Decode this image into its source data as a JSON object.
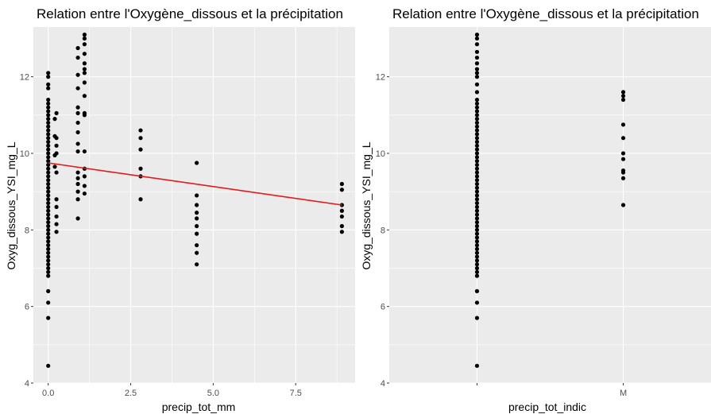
{
  "colors": {
    "panel_bg": "#EBEBEB",
    "grid": "#FFFFFF",
    "point": "#000000",
    "fit_line": "#E41A1C",
    "tick": "#4D4D4D"
  },
  "chart_data": [
    {
      "type": "scatter",
      "title": "Relation entre l'Oxygène_dissous et la précipitation",
      "xlabel": "precip_tot_mm",
      "ylabel": "Oxyg_dissous_YSI_mg_L",
      "xlim": [
        -0.45,
        9.3
      ],
      "ylim": [
        4,
        13.3
      ],
      "xticks": [
        0,
        2.5,
        5,
        7.5
      ],
      "xtick_labels": [
        "0.0",
        "2.5",
        "5.0",
        "7.5"
      ],
      "yticks": [
        4,
        6,
        8,
        10,
        12
      ],
      "ytick_labels": [
        "4",
        "6",
        "8",
        "10",
        "12"
      ],
      "grid": true,
      "trendline": {
        "type": "linear",
        "x": [
          0,
          8.9
        ],
        "y": [
          9.75,
          8.65
        ]
      },
      "series": [
        {
          "points": [
            [
              0,
              4.45
            ],
            [
              0,
              5.7
            ],
            [
              0,
              6.1
            ],
            [
              0,
              6.4
            ],
            [
              0,
              6.8
            ],
            [
              0,
              6.9
            ],
            [
              0,
              7.0
            ],
            [
              0,
              7.1
            ],
            [
              0,
              7.2
            ],
            [
              0,
              7.3
            ],
            [
              0,
              7.4
            ],
            [
              0,
              7.5
            ],
            [
              0,
              7.6
            ],
            [
              0,
              7.7
            ],
            [
              0,
              7.8
            ],
            [
              0,
              7.9
            ],
            [
              0,
              8.0
            ],
            [
              0,
              8.1
            ],
            [
              0,
              8.2
            ],
            [
              0,
              8.3
            ],
            [
              0,
              8.4
            ],
            [
              0,
              8.5
            ],
            [
              0,
              8.6
            ],
            [
              0,
              8.7
            ],
            [
              0,
              8.8
            ],
            [
              0,
              8.9
            ],
            [
              0,
              9.0
            ],
            [
              0,
              9.1
            ],
            [
              0,
              9.2
            ],
            [
              0,
              9.3
            ],
            [
              0,
              9.4
            ],
            [
              0,
              9.5
            ],
            [
              0,
              9.6
            ],
            [
              0,
              9.7
            ],
            [
              0,
              9.8
            ],
            [
              0,
              9.9
            ],
            [
              0,
              10.0
            ],
            [
              0,
              10.1
            ],
            [
              0,
              10.2
            ],
            [
              0,
              10.3
            ],
            [
              0,
              10.4
            ],
            [
              0,
              10.5
            ],
            [
              0,
              10.6
            ],
            [
              0,
              10.7
            ],
            [
              0,
              10.8
            ],
            [
              0,
              10.9
            ],
            [
              0,
              11.0
            ],
            [
              0,
              11.1
            ],
            [
              0,
              11.2
            ],
            [
              0,
              11.3
            ],
            [
              0,
              11.4
            ],
            [
              0,
              11.7
            ],
            [
              0,
              11.8
            ],
            [
              0,
              12.0
            ],
            [
              0,
              12.1
            ],
            [
              0.2,
              9.65
            ],
            [
              0.2,
              9.95
            ],
            [
              0.2,
              10.45
            ],
            [
              0.2,
              10.9
            ],
            [
              0.25,
              7.95
            ],
            [
              0.25,
              8.15
            ],
            [
              0.25,
              8.35
            ],
            [
              0.25,
              8.6
            ],
            [
              0.25,
              8.8
            ],
            [
              0.25,
              9.5
            ],
            [
              0.25,
              10.0
            ],
            [
              0.25,
              10.2
            ],
            [
              0.25,
              10.4
            ],
            [
              0.25,
              11.05
            ],
            [
              0.9,
              8.3
            ],
            [
              0.9,
              8.8
            ],
            [
              0.9,
              9.0
            ],
            [
              0.9,
              9.2
            ],
            [
              0.9,
              9.35
            ],
            [
              0.9,
              9.5
            ],
            [
              0.9,
              10.05
            ],
            [
              0.9,
              10.25
            ],
            [
              0.9,
              10.55
            ],
            [
              0.9,
              10.8
            ],
            [
              0.9,
              11.05
            ],
            [
              0.9,
              11.2
            ],
            [
              0.9,
              11.7
            ],
            [
              0.9,
              12.05
            ],
            [
              0.9,
              12.5
            ],
            [
              0.9,
              12.75
            ],
            [
              1.1,
              8.95
            ],
            [
              1.1,
              9.15
            ],
            [
              1.1,
              9.4
            ],
            [
              1.1,
              9.6
            ],
            [
              1.1,
              10.05
            ],
            [
              1.1,
              11.0
            ],
            [
              1.1,
              11.05
            ],
            [
              1.1,
              11.5
            ],
            [
              1.1,
              11.85
            ],
            [
              1.1,
              12.1
            ],
            [
              1.1,
              12.2
            ],
            [
              1.1,
              12.35
            ],
            [
              1.1,
              12.6
            ],
            [
              1.1,
              12.85
            ],
            [
              1.1,
              13.0
            ],
            [
              1.1,
              13.1
            ],
            [
              2.8,
              8.8
            ],
            [
              2.8,
              9.4
            ],
            [
              2.8,
              9.6
            ],
            [
              2.8,
              10.1
            ],
            [
              2.8,
              10.4
            ],
            [
              2.8,
              10.6
            ],
            [
              4.5,
              7.1
            ],
            [
              4.5,
              7.4
            ],
            [
              4.5,
              7.6
            ],
            [
              4.5,
              7.9
            ],
            [
              4.5,
              8.1
            ],
            [
              4.5,
              8.3
            ],
            [
              4.5,
              8.45
            ],
            [
              4.5,
              8.65
            ],
            [
              4.5,
              8.9
            ],
            [
              4.5,
              9.75
            ],
            [
              8.9,
              7.95
            ],
            [
              8.9,
              8.1
            ],
            [
              8.9,
              8.35
            ],
            [
              8.9,
              8.5
            ],
            [
              8.9,
              8.65
            ],
            [
              8.9,
              9.05
            ],
            [
              8.9,
              9.2
            ]
          ]
        }
      ]
    },
    {
      "type": "scatter",
      "title": "Relation entre l'Oxygène_dissous et la précipitation",
      "xlabel": "precip_tot_indic",
      "ylabel": "Oxyg_dissous_YSI_mg_L",
      "x_categories": [
        "",
        "M"
      ],
      "ylim": [
        4,
        13.3
      ],
      "yticks": [
        4,
        6,
        8,
        10,
        12
      ],
      "ytick_labels": [
        "4",
        "6",
        "8",
        "10",
        "12"
      ],
      "grid": true,
      "series": [
        {
          "points": [
            [
              "",
              4.45
            ],
            [
              "",
              5.7
            ],
            [
              "",
              6.1
            ],
            [
              "",
              6.4
            ],
            [
              "",
              6.8
            ],
            [
              "",
              6.9
            ],
            [
              "",
              7.0
            ],
            [
              "",
              7.1
            ],
            [
              "",
              7.2
            ],
            [
              "",
              7.3
            ],
            [
              "",
              7.4
            ],
            [
              "",
              7.5
            ],
            [
              "",
              7.6
            ],
            [
              "",
              7.7
            ],
            [
              "",
              7.8
            ],
            [
              "",
              7.9
            ],
            [
              "",
              8.0
            ],
            [
              "",
              8.1
            ],
            [
              "",
              8.2
            ],
            [
              "",
              8.3
            ],
            [
              "",
              8.4
            ],
            [
              "",
              8.5
            ],
            [
              "",
              8.6
            ],
            [
              "",
              8.7
            ],
            [
              "",
              8.8
            ],
            [
              "",
              8.9
            ],
            [
              "",
              9.0
            ],
            [
              "",
              9.1
            ],
            [
              "",
              9.2
            ],
            [
              "",
              9.3
            ],
            [
              "",
              9.4
            ],
            [
              "",
              9.5
            ],
            [
              "",
              9.6
            ],
            [
              "",
              9.7
            ],
            [
              "",
              9.8
            ],
            [
              "",
              9.9
            ],
            [
              "",
              10.0
            ],
            [
              "",
              10.1
            ],
            [
              "",
              10.2
            ],
            [
              "",
              10.3
            ],
            [
              "",
              10.4
            ],
            [
              "",
              10.5
            ],
            [
              "",
              10.6
            ],
            [
              "",
              10.7
            ],
            [
              "",
              10.8
            ],
            [
              "",
              10.9
            ],
            [
              "",
              11.0
            ],
            [
              "",
              11.1
            ],
            [
              "",
              11.2
            ],
            [
              "",
              11.3
            ],
            [
              "",
              11.4
            ],
            [
              "",
              11.6
            ],
            [
              "",
              11.8
            ],
            [
              "",
              12.0
            ],
            [
              "",
              12.1
            ],
            [
              "",
              12.2
            ],
            [
              "",
              12.35
            ],
            [
              "",
              12.5
            ],
            [
              "",
              12.65
            ],
            [
              "",
              12.85
            ],
            [
              "",
              13.0
            ],
            [
              "",
              13.1
            ],
            [
              "M",
              8.65
            ],
            [
              "M",
              9.35
            ],
            [
              "M",
              9.5
            ],
            [
              "M",
              9.55
            ],
            [
              "M",
              9.85
            ],
            [
              "M",
              10.0
            ],
            [
              "M",
              10.4
            ],
            [
              "M",
              10.75
            ],
            [
              "M",
              11.4
            ],
            [
              "M",
              11.5
            ],
            [
              "M",
              11.6
            ]
          ]
        }
      ]
    }
  ]
}
